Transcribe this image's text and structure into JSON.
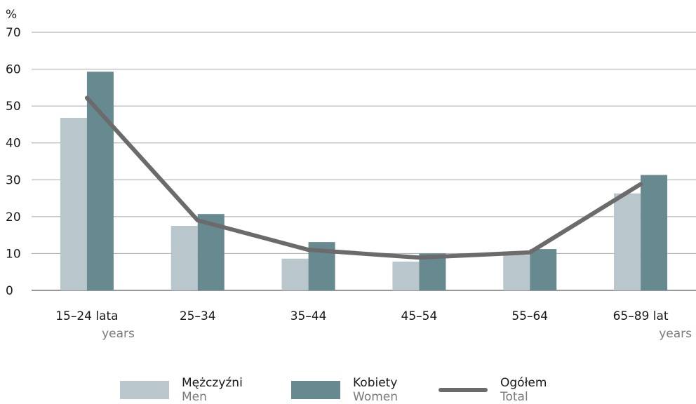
{
  "chart_data": {
    "type": "bar",
    "ylabel": "%",
    "ylim": [
      0,
      70
    ],
    "yticks": [
      0,
      10,
      20,
      30,
      40,
      50,
      60,
      70
    ],
    "grid": true,
    "categories": [
      "15–24 lata",
      "25–34",
      "35–44",
      "45–54",
      "55–64",
      "65–89 lat"
    ],
    "category_sublabels": [
      "years",
      "",
      "",
      "",
      "",
      "years"
    ],
    "series": [
      {
        "name": "Mężczyźni",
        "name_en": "Men",
        "kind": "bar",
        "color": "#b9c6cb",
        "values": [
          46.8,
          17.5,
          8.6,
          7.8,
          9.6,
          26.3
        ]
      },
      {
        "name": "Kobiety",
        "name_en": "Women",
        "kind": "bar",
        "color": "#668a90",
        "values": [
          59.3,
          20.7,
          13.1,
          10.0,
          11.2,
          31.3
        ]
      },
      {
        "name": "Ogółem",
        "name_en": "Total",
        "kind": "line",
        "color": "#6b6b6b",
        "values": [
          52.2,
          19.0,
          11.0,
          8.9,
          10.3,
          28.8
        ]
      }
    ],
    "legend_position": "bottom"
  }
}
